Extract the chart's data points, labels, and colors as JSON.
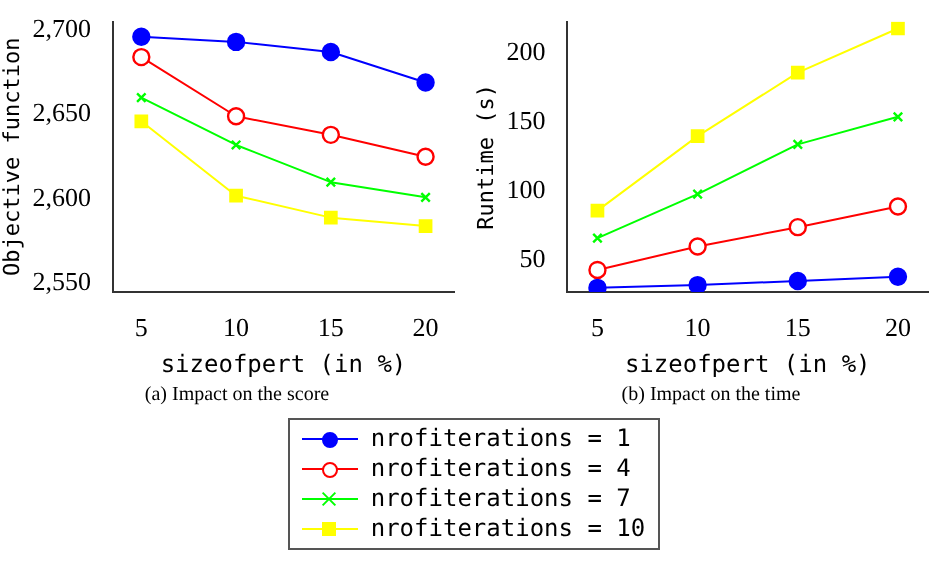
{
  "chart_data": [
    {
      "type": "line",
      "xlabel": "sizeofpert (in %)",
      "ylabel": "Objective function",
      "annotations": [
        "(a) Impact on the score"
      ],
      "x": [
        5,
        10,
        15,
        20
      ],
      "xlim": [
        3.5,
        21.5
      ],
      "xticks": [
        5,
        10,
        15,
        20
      ],
      "ylim": [
        2545,
        2705
      ],
      "yticks": [
        {
          "value": 2550,
          "label": "2,550"
        },
        {
          "value": 2600,
          "label": "2,600"
        },
        {
          "value": 2650,
          "label": "2,650"
        },
        {
          "value": 2700,
          "label": "2,700"
        }
      ],
      "grid": false,
      "legend": "bottom",
      "series": [
        {
          "name": "nrofiterations = 1",
          "color": "#0000ff",
          "marker": "circle",
          "values": [
            2696,
            2693,
            2687,
            2669
          ]
        },
        {
          "name": "nrofiterations = 4",
          "color": "#ff0000",
          "marker": "open circle",
          "values": [
            2684,
            2649,
            2638,
            2625
          ]
        },
        {
          "name": "nrofiterations = 7",
          "color": "#00ff00",
          "marker": "cross",
          "values": [
            2660,
            2632,
            2610,
            2601
          ]
        },
        {
          "name": "nrofiterations = 10",
          "color": "#ffff00",
          "marker": "square",
          "values": [
            2646,
            2602,
            2589,
            2584
          ]
        }
      ]
    },
    {
      "type": "line",
      "xlabel": "sizeofpert (in %)",
      "ylabel": "Runtime (s)",
      "annotations": [
        "(b) Impact on the time"
      ],
      "x": [
        5,
        10,
        15,
        20
      ],
      "xlim": [
        3.5,
        21.5
      ],
      "xticks": [
        5,
        10,
        15,
        20
      ],
      "ylim": [
        27,
        223
      ],
      "yticks": [
        50,
        100,
        150,
        200
      ],
      "grid": false,
      "series": [
        {
          "color": "#0000ff",
          "marker": "circle",
          "values": [
            30,
            32,
            35,
            38
          ]
        },
        {
          "color": "#ff0000",
          "marker": "open circle",
          "values": [
            43,
            60,
            74,
            89
          ]
        },
        {
          "color": "#00ff00",
          "marker": "cross",
          "values": [
            66,
            98,
            134,
            154
          ]
        },
        {
          "color": "#ffff00",
          "marker": "square",
          "values": [
            86,
            140,
            186,
            218
          ]
        }
      ]
    }
  ]
}
